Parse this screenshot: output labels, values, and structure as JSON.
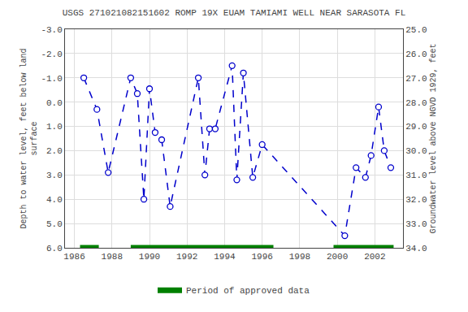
{
  "chart_data": {
    "type": "line",
    "title": "USGS 271021082151602 ROMP 19X EUAM TAMIAMI WELL NEAR SARASOTA FL",
    "ylabel": "Depth to water level, feet below land\nsurface",
    "y2label": "Groundwater level above NGVD 1929, feet",
    "x": [
      1986.5,
      1987.2,
      1987.8,
      1989.0,
      1989.35,
      1989.7,
      1990.0,
      1990.3,
      1990.65,
      1991.1,
      1992.6,
      1992.95,
      1993.2,
      1993.5,
      1994.4,
      1994.65,
      1995.0,
      1995.5,
      1996.0,
      2000.4,
      2001.0,
      2001.5,
      2001.8,
      2002.2,
      2002.5,
      2002.85
    ],
    "series": [
      {
        "color": "#0000cc",
        "marker": "circle",
        "line_style": "dashed",
        "values": [
          -1.0,
          0.3,
          2.9,
          -1.0,
          -0.35,
          4.0,
          -0.55,
          1.25,
          1.55,
          4.3,
          -1.0,
          3.0,
          1.1,
          1.1,
          -1.5,
          3.2,
          -1.2,
          3.1,
          1.75,
          5.5,
          2.7,
          3.1,
          2.2,
          0.2,
          2.0,
          2.7
        ]
      }
    ],
    "periods": {
      "name": "Period of approved data",
      "color": "#008000",
      "y": 6.0,
      "ranges": [
        [
          1986.3,
          1987.3
        ],
        [
          1989.0,
          1996.6
        ],
        [
          1999.8,
          2003.0
        ]
      ]
    },
    "xlim": [
      1985.5,
      2003.5
    ],
    "xticks": [
      1986,
      1988,
      1990,
      1992,
      1994,
      1996,
      1998,
      2000,
      2002
    ],
    "ylim": [
      6.0,
      -3.0
    ],
    "yticks": [
      {
        "value": -3.0,
        "label": "-3.0"
      },
      {
        "value": -2.0,
        "label": "-2.0"
      },
      {
        "value": -1.0,
        "label": "-1.0"
      },
      {
        "value": 0.0,
        "label": "0.0"
      },
      {
        "value": 1.0,
        "label": "1.0"
      },
      {
        "value": 2.0,
        "label": "2.0"
      },
      {
        "value": 3.0,
        "label": "3.0"
      },
      {
        "value": 4.0,
        "label": "4.0"
      },
      {
        "value": 5.0,
        "label": "5.0"
      },
      {
        "value": 6.0,
        "label": "6.0"
      }
    ],
    "y2lim": [
      34.0,
      25.0
    ],
    "y2ticks": [
      {
        "value": 34.0,
        "label": "34.0"
      },
      {
        "value": 33.0,
        "label": "33.0"
      },
      {
        "value": 32.0,
        "label": "32.0"
      },
      {
        "value": 31.0,
        "label": "31.0"
      },
      {
        "value": 30.0,
        "label": "30.0"
      },
      {
        "value": 29.0,
        "label": "29.0"
      },
      {
        "value": 28.0,
        "label": "28.0"
      },
      {
        "value": 27.0,
        "label": "27.0"
      },
      {
        "value": 26.0,
        "label": "26.0"
      },
      {
        "value": 25.0,
        "label": "25.0"
      }
    ],
    "grid": true,
    "legend": "bottom"
  }
}
